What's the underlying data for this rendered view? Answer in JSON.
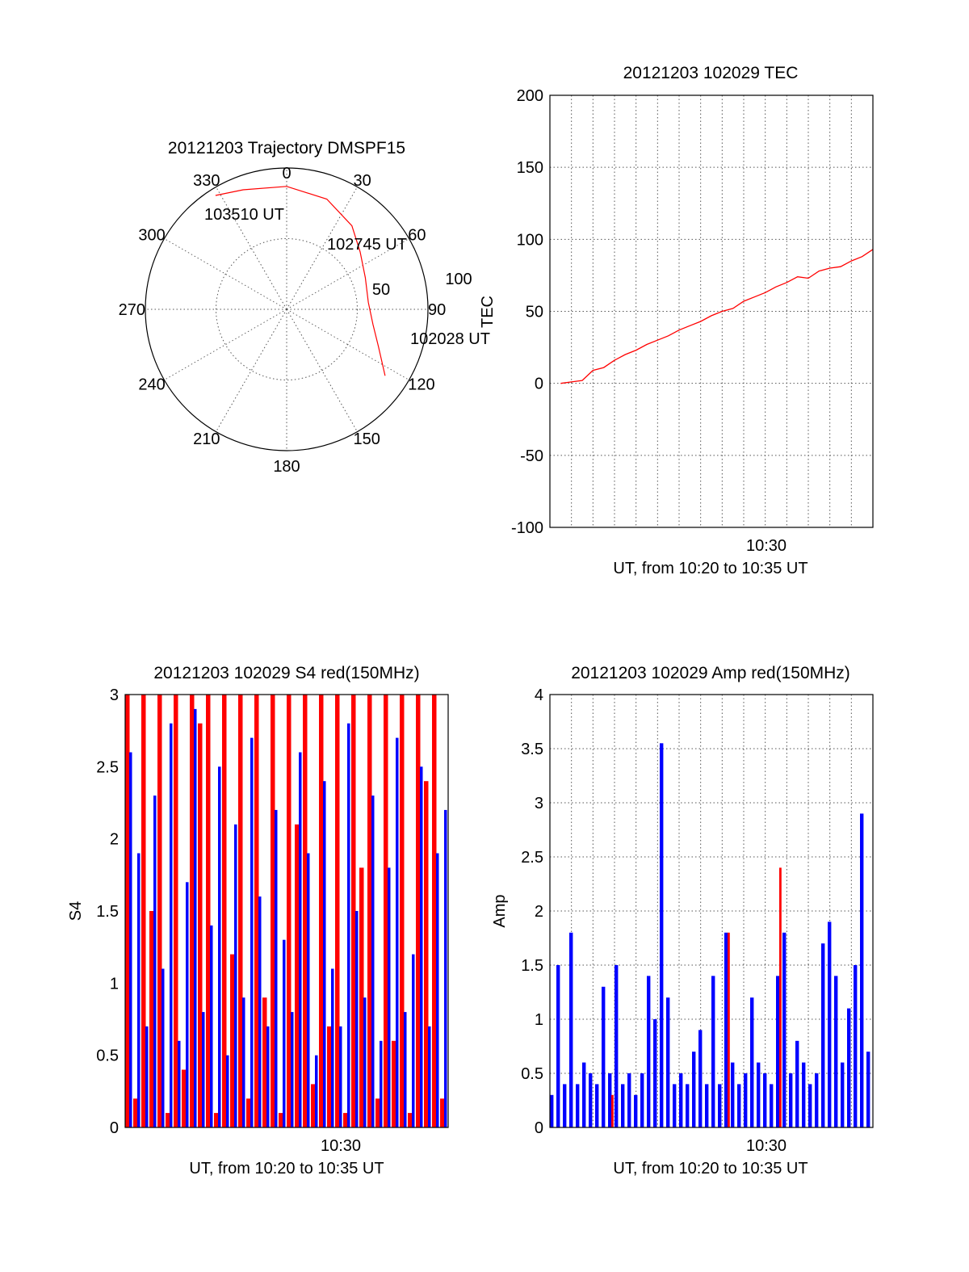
{
  "colors": {
    "red": "#ff0000",
    "blue": "#0000ff",
    "axis": "#000000"
  },
  "chart_data": [
    {
      "type": "polar",
      "title": "20121203 Trajectory DMSPF15",
      "angle_labels": [
        "0",
        "30",
        "60",
        "90",
        "120",
        "150",
        "180",
        "210",
        "240",
        "270",
        "300",
        "330"
      ],
      "radial_labels": [
        "50",
        "100"
      ],
      "time_labels": [
        "103510 UT",
        "102745 UT",
        "102028 UT"
      ],
      "trajectory": [
        {
          "azimuth": 124,
          "radius": 84
        },
        {
          "azimuth": 112,
          "radius": 70
        },
        {
          "azimuth": 100,
          "radius": 62
        },
        {
          "azimuth": 85,
          "radius": 58
        },
        {
          "azimuth": 68,
          "radius": 60
        },
        {
          "azimuth": 52,
          "radius": 66
        },
        {
          "azimuth": 38,
          "radius": 75
        },
        {
          "azimuth": 20,
          "radius": 83
        },
        {
          "azimuth": 0,
          "radius": 87
        },
        {
          "azimuth": -20,
          "radius": 90
        },
        {
          "azimuth": -32,
          "radius": 95
        }
      ]
    },
    {
      "type": "line",
      "title": "20121203 102029 TEC",
      "xlabel": "UT, from 10:20 to 10:35 UT",
      "ylabel": "TEC",
      "xtick_label": "10:30",
      "ylim": [
        -100,
        200
      ],
      "yticks": [
        "-100",
        "-50",
        "0",
        "50",
        "100",
        "150",
        "200"
      ],
      "x": [
        0.5,
        1,
        1.5,
        2,
        2.5,
        3,
        3.5,
        4,
        4.5,
        5,
        5.5,
        6,
        6.5,
        7,
        7.5,
        8,
        8.5,
        9,
        9.5,
        10,
        10.5,
        11,
        11.5,
        12,
        12.5,
        13,
        13.5,
        14,
        14.5,
        15
      ],
      "values": [
        0,
        1,
        2,
        9,
        11,
        16,
        20,
        23,
        27,
        30,
        33,
        37,
        40,
        43,
        47,
        50,
        52,
        57,
        60,
        63,
        67,
        70,
        74,
        73,
        78,
        80,
        81,
        85,
        88,
        93
      ]
    },
    {
      "type": "bar",
      "title": "20121203 102029 S4 red(150MHz)",
      "xlabel": "UT, from 10:20 to 10:35 UT",
      "ylabel": "S4",
      "xtick_label": "10:30",
      "ylim": [
        0,
        3
      ],
      "yticks": [
        "0",
        "0.5",
        "1",
        "1.5",
        "2",
        "2.5",
        "3"
      ],
      "series": [
        {
          "values": [
            3,
            0.2,
            3,
            1.5,
            3,
            0.1,
            3,
            0.4,
            3,
            2.8,
            3,
            0.1,
            3,
            1.2,
            3,
            0.2,
            3,
            0.9,
            3,
            0.1,
            3,
            2.1,
            3,
            0.3,
            3,
            0.7,
            3,
            0.1,
            3,
            1.8,
            3,
            0.2,
            3,
            0.6,
            3,
            0.1,
            3,
            2.4,
            3,
            0.2
          ]
        },
        {
          "values": [
            2.6,
            1.9,
            0.7,
            2.3,
            1.1,
            2.8,
            0.6,
            1.7,
            2.9,
            0.8,
            1.4,
            2.5,
            0.5,
            2.1,
            0.9,
            2.7,
            1.6,
            0.7,
            2.2,
            1.3,
            0.8,
            2.6,
            1.9,
            0.5,
            2.4,
            1.1,
            0.7,
            2.8,
            1.5,
            0.9,
            2.3,
            0.6,
            1.8,
            2.7,
            0.8,
            1.2,
            2.5,
            0.7,
            1.9,
            2.2
          ]
        }
      ]
    },
    {
      "type": "bar",
      "title": "20121203 102029 Amp red(150MHz)",
      "xlabel": "UT, from 10:20 to 10:35 UT",
      "ylabel": "Amp",
      "xtick_label": "10:30",
      "ylim": [
        0,
        4
      ],
      "yticks": [
        "0",
        "0.5",
        "1",
        "1.5",
        "2",
        "2.5",
        "3",
        "3.5",
        "4"
      ],
      "series": [
        {
          "values": [
            0.3,
            1.5,
            0.4,
            1.8,
            0.4,
            0.6,
            0.5,
            0.4,
            1.3,
            0.5,
            1.5,
            0.4,
            0.5,
            0.3,
            0.5,
            1.4,
            1.0,
            3.55,
            1.2,
            0.4,
            0.5,
            0.4,
            0.7,
            0.9,
            0.4,
            1.4,
            0.4,
            1.8,
            0.6,
            0.4,
            0.5,
            1.2,
            0.6,
            0.5,
            0.4,
            1.4,
            1.8,
            0.5,
            0.8,
            0.6,
            0.4,
            0.5,
            1.7,
            1.9,
            1.4,
            0.6,
            1.1,
            1.5,
            2.9,
            0.7
          ]
        },
        {
          "values": [
            0,
            0,
            0,
            0,
            0,
            0,
            0,
            0,
            0,
            0.3,
            0,
            0,
            0,
            0,
            0,
            0,
            0,
            0,
            0,
            0,
            0,
            0,
            0,
            0,
            0,
            0,
            0,
            1.8,
            0,
            0,
            0,
            0,
            0,
            0,
            0,
            2.4,
            0,
            0,
            0,
            0,
            0,
            0,
            0,
            0,
            0,
            0,
            0,
            0,
            0,
            0
          ]
        }
      ]
    }
  ]
}
